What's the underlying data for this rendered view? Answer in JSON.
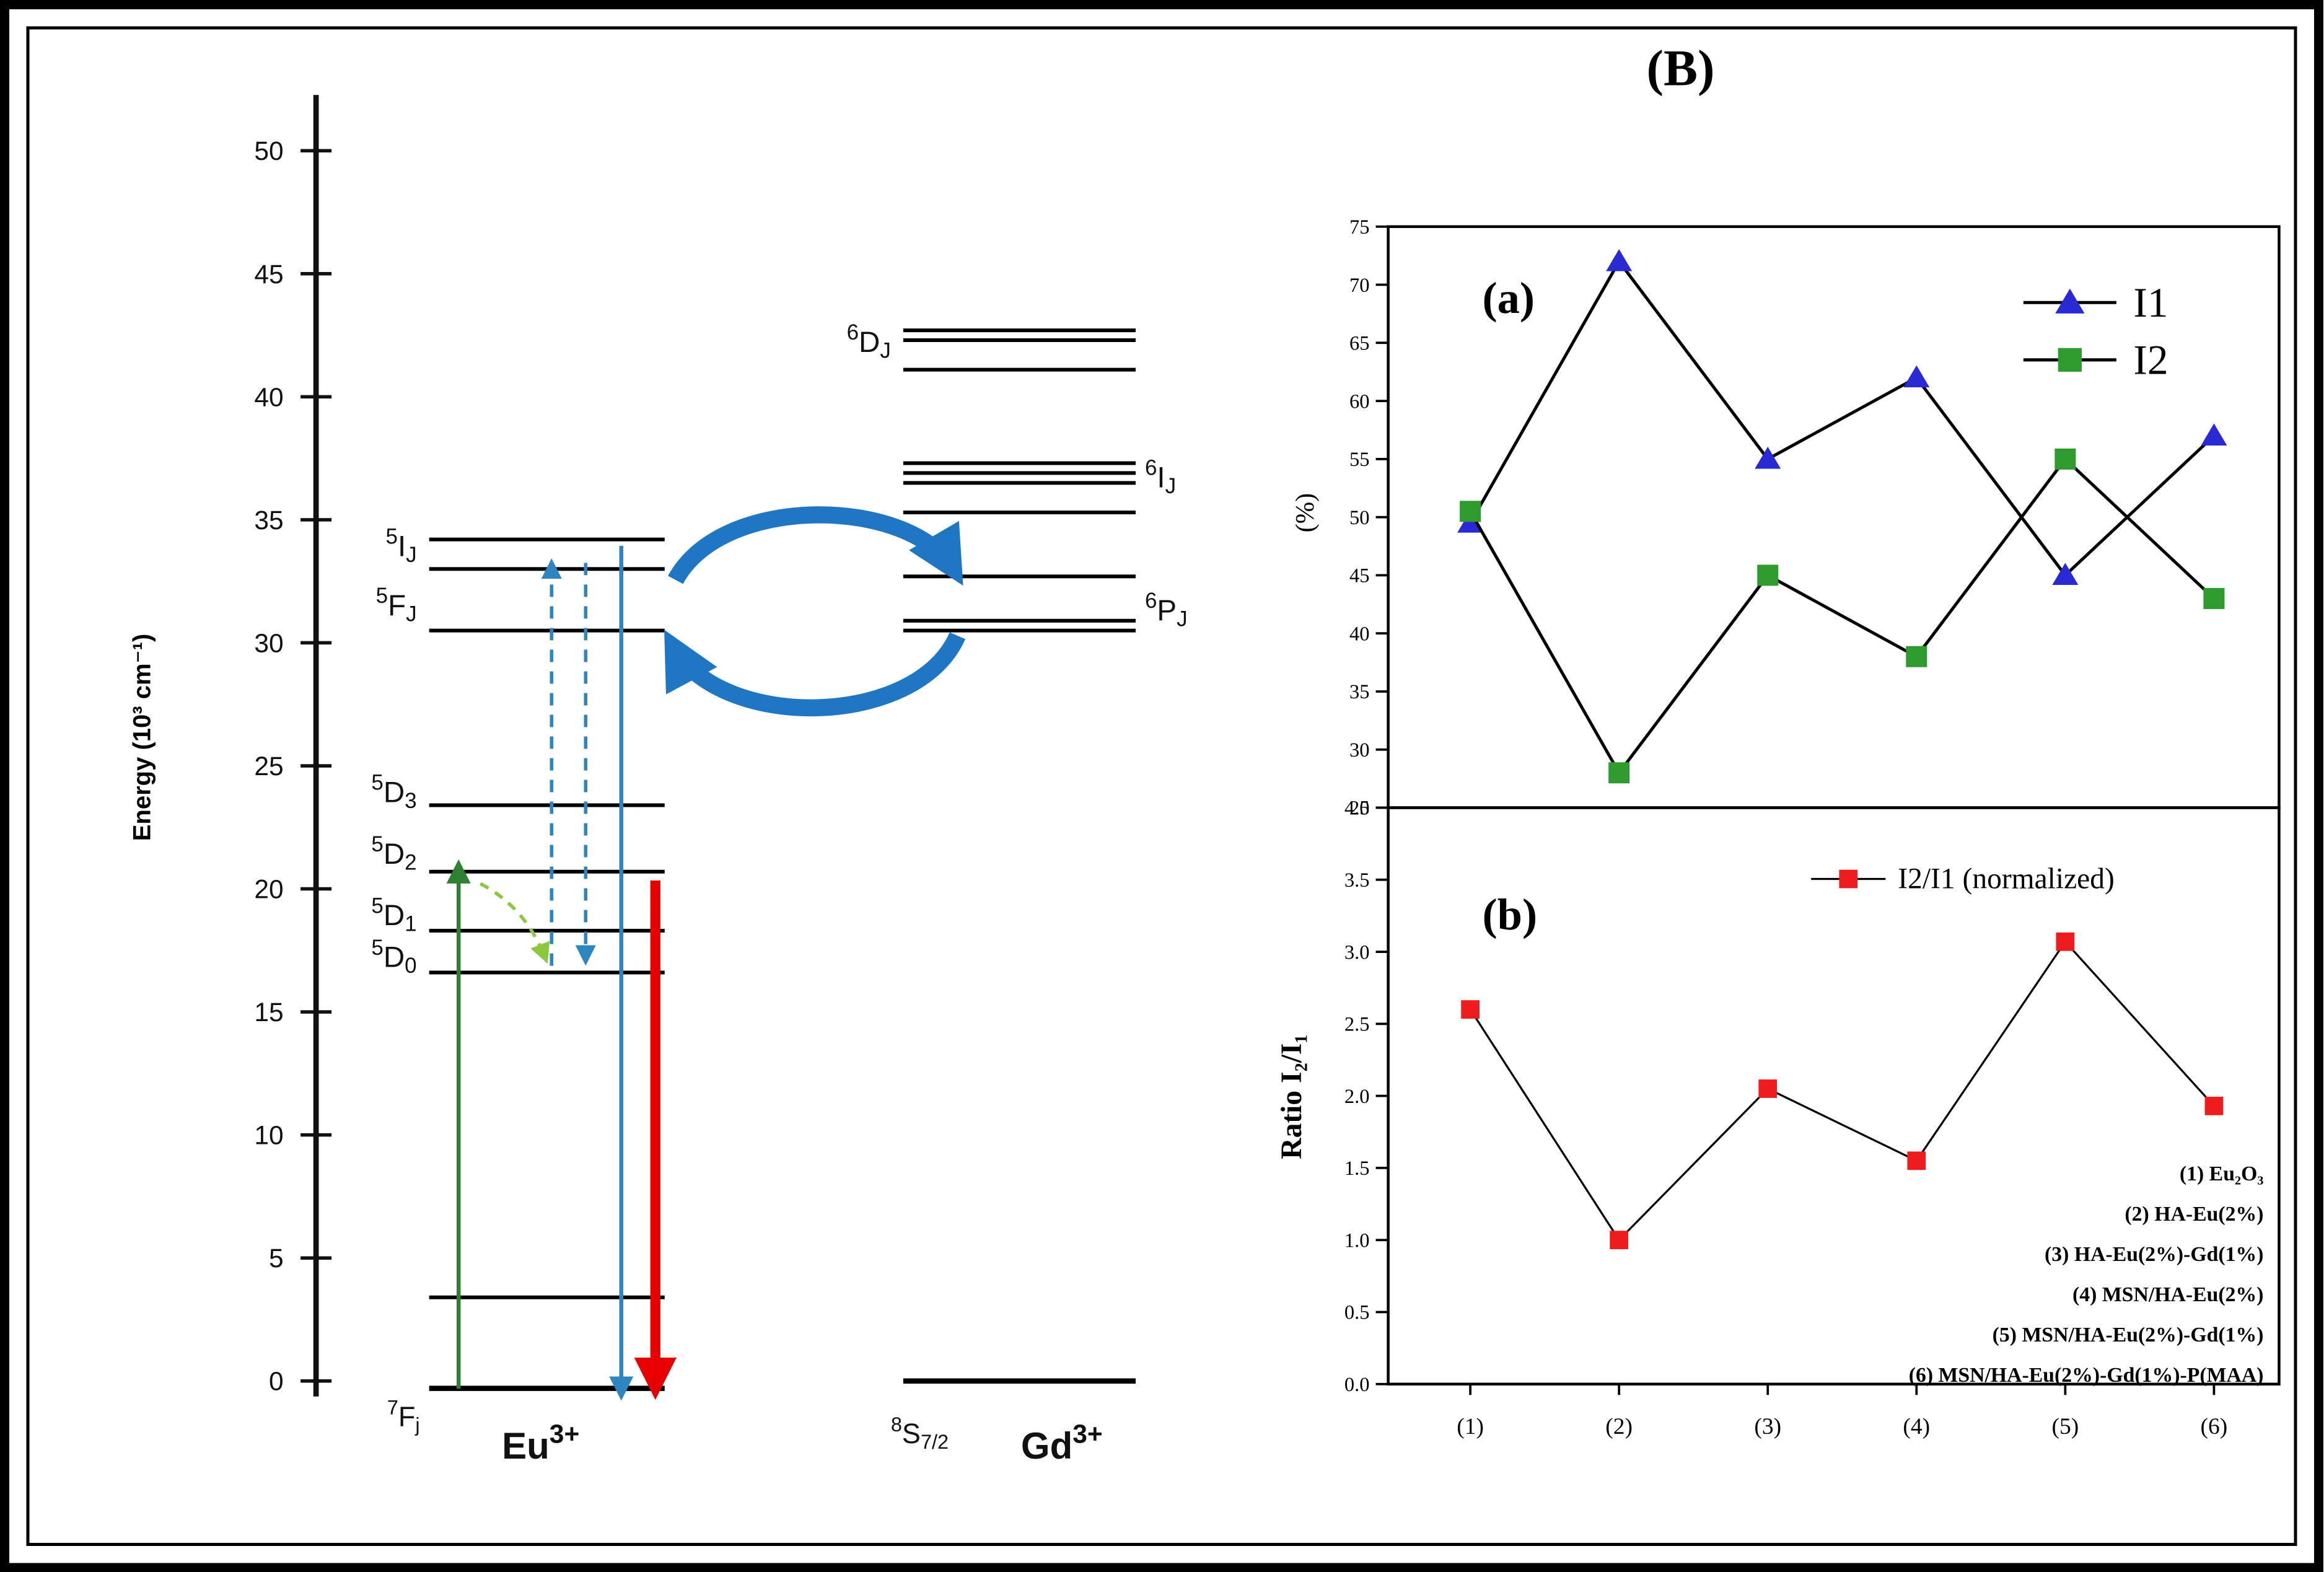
{
  "figure": {
    "panel_b_title": "(B)",
    "panel_a_label": "(a)",
    "panel_b_label": "(b)"
  },
  "diagram": {
    "axis_label": "Energy (10³ cm⁻¹)",
    "axis_range": [
      0,
      50
    ],
    "axis_ticks": [
      50,
      45,
      40,
      35,
      30,
      25,
      20,
      15,
      10,
      5,
      0
    ],
    "colors": {
      "level": "#000000",
      "excitation": "#2f8032",
      "relaxation": "#8dc63f",
      "transfer": "#2e86c1",
      "emission_red": "#e60000",
      "exchange": "#1f76c2"
    },
    "ions": [
      {
        "id": "eu",
        "ion_label": [
          [
            "n",
            "Eu"
          ],
          [
            "sup",
            "3+"
          ]
        ],
        "ground_label": [
          [
            "sup",
            "7"
          ],
          [
            "n",
            "F"
          ],
          [
            "sub",
            "j"
          ]
        ],
        "levels": [
          {
            "label": [
              [
                "sup",
                "5"
              ],
              [
                "n",
                "I"
              ],
              [
                "sub",
                "J"
              ]
            ],
            "side": "left",
            "label_energy": 33.9,
            "lines": [
              34.2,
              33.0
            ]
          },
          {
            "label": [
              [
                "sup",
                "5"
              ],
              [
                "n",
                "F"
              ],
              [
                "sub",
                "J"
              ]
            ],
            "side": "left",
            "label_energy": 31.5,
            "lines": [
              30.5
            ]
          },
          {
            "label": [
              [
                "sup",
                "5"
              ],
              [
                "n",
                "D"
              ],
              [
                "sub",
                "3"
              ]
            ],
            "side": "left",
            "label_energy": 23.9,
            "lines": [
              23.4
            ]
          },
          {
            "label": [
              [
                "sup",
                "5"
              ],
              [
                "n",
                "D"
              ],
              [
                "sub",
                "2"
              ]
            ],
            "side": "left",
            "label_energy": 21.4,
            "lines": [
              20.7
            ]
          },
          {
            "label": [
              [
                "sup",
                "5"
              ],
              [
                "n",
                "D"
              ],
              [
                "sub",
                "1"
              ]
            ],
            "side": "left",
            "label_energy": 18.9,
            "lines": [
              18.3
            ]
          },
          {
            "label": [
              [
                "sup",
                "5"
              ],
              [
                "n",
                "D"
              ],
              [
                "sub",
                "0"
              ]
            ],
            "side": "left",
            "label_energy": 17.2,
            "lines": [
              16.6
            ]
          },
          {
            "label": null,
            "lines": [
              3.4
            ]
          },
          {
            "label": null,
            "lines": [
              -0.3
            ],
            "ground": true
          }
        ]
      },
      {
        "id": "gd",
        "ion_label": [
          [
            "n",
            "Gd"
          ],
          [
            "sup",
            "3+"
          ]
        ],
        "ground_label": [
          [
            "sup",
            "8"
          ],
          [
            "n",
            "S"
          ],
          [
            "sub",
            "7/2"
          ]
        ],
        "levels": [
          {
            "label": [
              [
                "sup",
                "6"
              ],
              [
                "n",
                "D"
              ],
              [
                "sub",
                "J"
              ]
            ],
            "side": "left",
            "label_energy": 42.2,
            "lines": [
              42.7,
              42.3,
              41.1
            ]
          },
          {
            "label": [
              [
                "sup",
                "6"
              ],
              [
                "n",
                "I"
              ],
              [
                "sub",
                "J"
              ]
            ],
            "side": "right",
            "label_energy": 36.7,
            "lines": [
              37.3,
              36.9,
              36.5,
              35.3
            ]
          },
          {
            "label": [
              [
                "sup",
                "6"
              ],
              [
                "n",
                "P"
              ],
              [
                "sub",
                "J"
              ]
            ],
            "side": "right",
            "label_energy": 31.3,
            "lines": [
              32.7,
              30.9,
              30.5
            ]
          },
          {
            "label": null,
            "lines": [
              0
            ],
            "ground": true
          }
        ]
      }
    ]
  },
  "chart_data": [
    {
      "type": "line",
      "panel": "a",
      "title": "",
      "categories": [
        "(1)",
        "(2)",
        "(3)",
        "(4)",
        "(5)",
        "(6)"
      ],
      "series": [
        {
          "name": "I1",
          "marker": "triangle",
          "marker_color": "#2a2ad4",
          "line_color": "#000000",
          "values": [
            49.5,
            72,
            55,
            62,
            45,
            57
          ]
        },
        {
          "name": "I2",
          "marker": "square",
          "marker_color": "#2e9b2e",
          "line_color": "#000000",
          "values": [
            50.5,
            28,
            45,
            38,
            55,
            43
          ]
        }
      ],
      "xlabel": "",
      "ylabel": "(%)",
      "ylim": [
        25,
        75
      ],
      "ytick_step": 5,
      "legend_position": "top-right",
      "grid": false
    },
    {
      "type": "line",
      "panel": "b",
      "title": "",
      "categories": [
        "(1)",
        "(2)",
        "(3)",
        "(4)",
        "(5)",
        "(6)"
      ],
      "series": [
        {
          "name": "I2/I1 (normalized)",
          "marker": "square",
          "marker_color": "#ee1c1c",
          "line_color": "#000000",
          "values": [
            2.6,
            1.0,
            2.05,
            1.55,
            3.07,
            1.93
          ]
        }
      ],
      "xlabel": "",
      "ylabel": "Ratio I₂/I₁",
      "ylim": [
        0,
        4
      ],
      "ytick_step": 0.5,
      "legend_position": "top-center",
      "grid": false
    }
  ],
  "samples": [
    "(1) Eu₂O₃",
    "(2) HA-Eu(2%)",
    "(3) HA-Eu(2%)-Gd(1%)",
    "(4) MSN/HA-Eu(2%)",
    "(5) MSN/HA-Eu(2%)-Gd(1%)",
    "(6) MSN/HA-Eu(2%)-Gd(1%)-P(MAA)"
  ]
}
